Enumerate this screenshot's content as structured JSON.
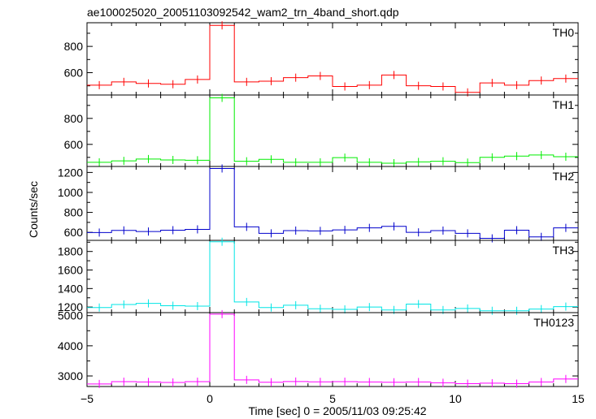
{
  "chart_data": {
    "type": "line",
    "title": "ae100025020_20051103092542_wam2_trn_4band_short.qdp",
    "xlabel": "Time [sec] 0 = 2005/11/03 09:25:42",
    "ylabel": "Counts/sec",
    "xlim": [
      -5,
      15
    ],
    "x_ticks": [
      -5,
      0,
      5,
      10,
      15
    ],
    "x_tick_labels": [
      "−5",
      "0",
      "5",
      "10",
      "15"
    ],
    "bin_width": 1.0,
    "bin_starts": [
      -5,
      -4,
      -3,
      -2,
      -1,
      0,
      1,
      2,
      3,
      4,
      5,
      6,
      7,
      8,
      9,
      10,
      11,
      12,
      13,
      14
    ],
    "series": [
      {
        "name": "TH0",
        "color": "#ff0000",
        "ylim": [
          430,
          980
        ],
        "yticks": [
          600,
          800
        ],
        "values": [
          505,
          530,
          518,
          512,
          548,
          960,
          530,
          535,
          562,
          575,
          495,
          505,
          582,
          500,
          495,
          450,
          522,
          505,
          540,
          555
        ]
      },
      {
        "name": "TH1",
        "color": "#00ee00",
        "ylim": [
          430,
          980
        ],
        "yticks": [
          600,
          800
        ],
        "values": [
          462,
          473,
          487,
          480,
          478,
          958,
          470,
          485,
          462,
          462,
          498,
          462,
          455,
          465,
          470,
          460,
          500,
          510,
          518,
          505
        ]
      },
      {
        "name": "TH2",
        "color": "#0000cc",
        "ylim": [
          520,
          1260
        ],
        "yticks": [
          600,
          800,
          1000,
          1200
        ],
        "values": [
          598,
          620,
          608,
          622,
          630,
          1240,
          655,
          590,
          618,
          615,
          625,
          645,
          660,
          600,
          618,
          590,
          540,
          622,
          555,
          645
        ]
      },
      {
        "name": "TH3",
        "color": "#00e5e5",
        "ylim": [
          1140,
          1920
        ],
        "yticks": [
          1200,
          1400,
          1600,
          1800
        ],
        "values": [
          1195,
          1228,
          1240,
          1215,
          1210,
          1905,
          1255,
          1195,
          1220,
          1182,
          1175,
          1200,
          1168,
          1232,
          1168,
          1185,
          1160,
          1160,
          1178,
          1205
        ]
      },
      {
        "name": "TH0123",
        "color": "#ff00ff",
        "ylim": [
          2650,
          5100
        ],
        "yticks": [
          3000,
          4000,
          5000
        ],
        "values": [
          2735,
          2810,
          2800,
          2785,
          2810,
          5050,
          2870,
          2790,
          2815,
          2805,
          2810,
          2800,
          2790,
          2800,
          2775,
          2745,
          2760,
          2745,
          2800,
          2900
        ]
      }
    ]
  }
}
